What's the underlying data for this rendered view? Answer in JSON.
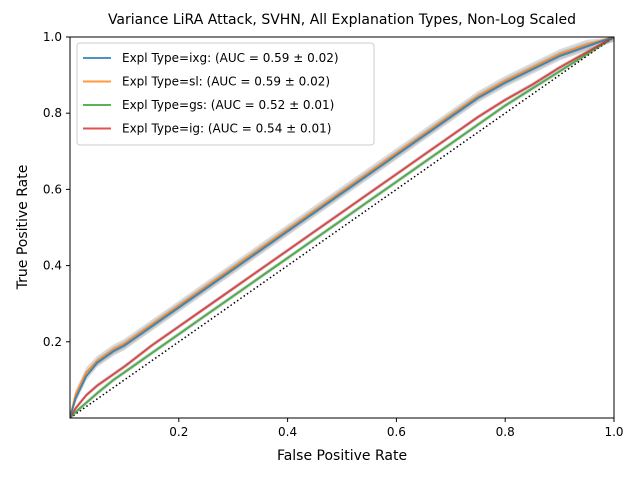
{
  "chart_data": {
    "type": "line",
    "title": "Variance LiRA Attack, SVHN, All Explanation Types, Non-Log Scaled",
    "xlabel": "False Positive Rate",
    "ylabel": "True Positive Rate",
    "xlim": [
      0,
      1
    ],
    "ylim": [
      0,
      1
    ],
    "xticks": [
      0.2,
      0.4,
      0.6,
      0.8,
      1.0
    ],
    "xtick_labels": [
      "0.2",
      "0.4",
      "0.6",
      "0.8",
      "1.0"
    ],
    "yticks": [
      0.2,
      0.4,
      0.6,
      0.8,
      1.0
    ],
    "ytick_labels": [
      "0.2",
      "0.4",
      "0.6",
      "0.8",
      "1.0"
    ],
    "grid": false,
    "legend_position": "top-left",
    "x": [
      0,
      0.01,
      0.03,
      0.05,
      0.08,
      0.1,
      0.15,
      0.2,
      0.25,
      0.3,
      0.35,
      0.4,
      0.45,
      0.5,
      0.55,
      0.6,
      0.65,
      0.7,
      0.75,
      0.8,
      0.85,
      0.9,
      0.95,
      1.0
    ],
    "series": [
      {
        "name": "Expl Type=ixg: (AUC = 0.59 ± 0.02)",
        "color": "#1f77b4",
        "values": [
          0,
          0.05,
          0.11,
          0.145,
          0.175,
          0.19,
          0.24,
          0.29,
          0.34,
          0.39,
          0.44,
          0.49,
          0.54,
          0.59,
          0.64,
          0.69,
          0.74,
          0.79,
          0.84,
          0.88,
          0.915,
          0.95,
          0.975,
          1.0
        ]
      },
      {
        "name": "Expl Type=sl: (AUC = 0.59 ± 0.02)",
        "color": "#ff7f0e",
        "values": [
          0,
          0.06,
          0.12,
          0.15,
          0.18,
          0.195,
          0.245,
          0.295,
          0.345,
          0.395,
          0.445,
          0.495,
          0.545,
          0.595,
          0.645,
          0.695,
          0.745,
          0.795,
          0.845,
          0.885,
          0.92,
          0.955,
          0.98,
          1.0
        ]
      },
      {
        "name": "Expl Type=gs: (AUC = 0.52 ± 0.01)",
        "color": "#2ca02c",
        "values": [
          0,
          0.015,
          0.04,
          0.065,
          0.1,
          0.12,
          0.17,
          0.22,
          0.27,
          0.32,
          0.37,
          0.42,
          0.47,
          0.52,
          0.57,
          0.62,
          0.67,
          0.72,
          0.77,
          0.82,
          0.865,
          0.91,
          0.955,
          1.0
        ]
      },
      {
        "name": "Expl Type=ig: (AUC = 0.54 ± 0.01)",
        "color": "#d62728",
        "values": [
          0,
          0.025,
          0.06,
          0.085,
          0.115,
          0.135,
          0.19,
          0.24,
          0.29,
          0.34,
          0.39,
          0.44,
          0.49,
          0.54,
          0.59,
          0.64,
          0.69,
          0.74,
          0.79,
          0.835,
          0.875,
          0.92,
          0.96,
          1.0
        ]
      }
    ],
    "reference_line": {
      "style": "dotted",
      "color": "#000000",
      "points": [
        [
          0,
          0
        ],
        [
          1,
          1
        ]
      ]
    }
  }
}
